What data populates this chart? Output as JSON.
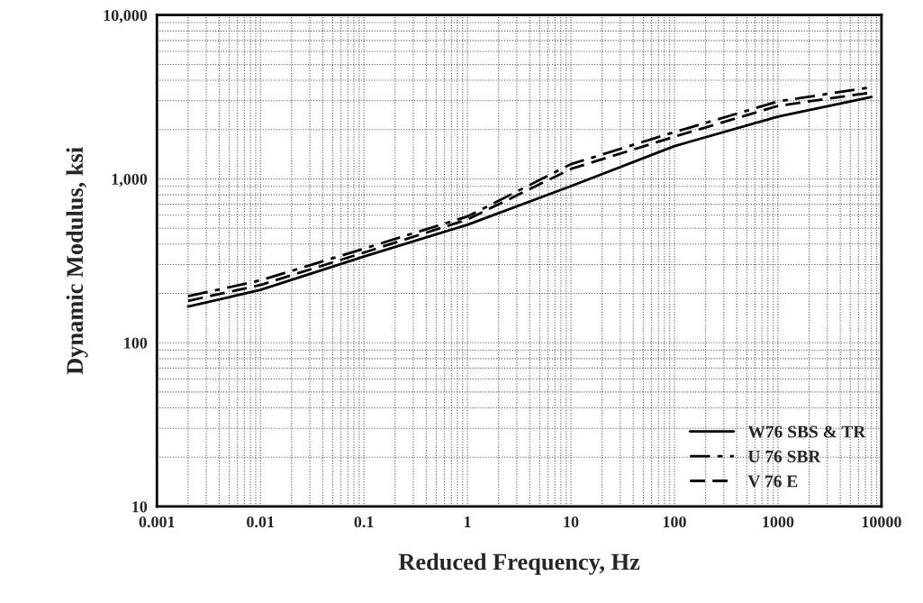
{
  "chart_data": {
    "type": "line",
    "xlabel": "Reduced Frequency, Hz",
    "ylabel": "Dynamic Modulus, ksi",
    "log": "xy",
    "grid": true,
    "legend": "bottom right",
    "xlim": [
      0.001,
      10000
    ],
    "ylim": [
      10,
      10000
    ],
    "xticks": [
      0.001,
      0.01,
      0.1,
      1,
      10,
      100,
      1000,
      10000
    ],
    "yticks": [
      10,
      100,
      {
        "value": 1000,
        "label": "1,000"
      },
      {
        "value": 10000,
        "label": "10,000"
      }
    ],
    "x": [
      0.002,
      0.01,
      0.1,
      1,
      10,
      100,
      1000,
      8000
    ],
    "series": [
      {
        "name": "W76 SBS & TR",
        "color": "#000000",
        "line_style": "solid",
        "values": [
          166,
          210,
          336,
          525,
          904,
          1585,
          2400,
          3160
        ]
      },
      {
        "name": "U 76 SBR",
        "color": "#000000",
        "line_style": "dashdot",
        "values": [
          192,
          240,
          375,
          590,
          1230,
          1930,
          2970,
          3630
        ]
      },
      {
        "name": "V 76 E",
        "color": "#000000",
        "line_style": "dashed",
        "values": [
          180,
          225,
          355,
          565,
          1150,
          1810,
          2790,
          3370
        ]
      }
    ]
  }
}
